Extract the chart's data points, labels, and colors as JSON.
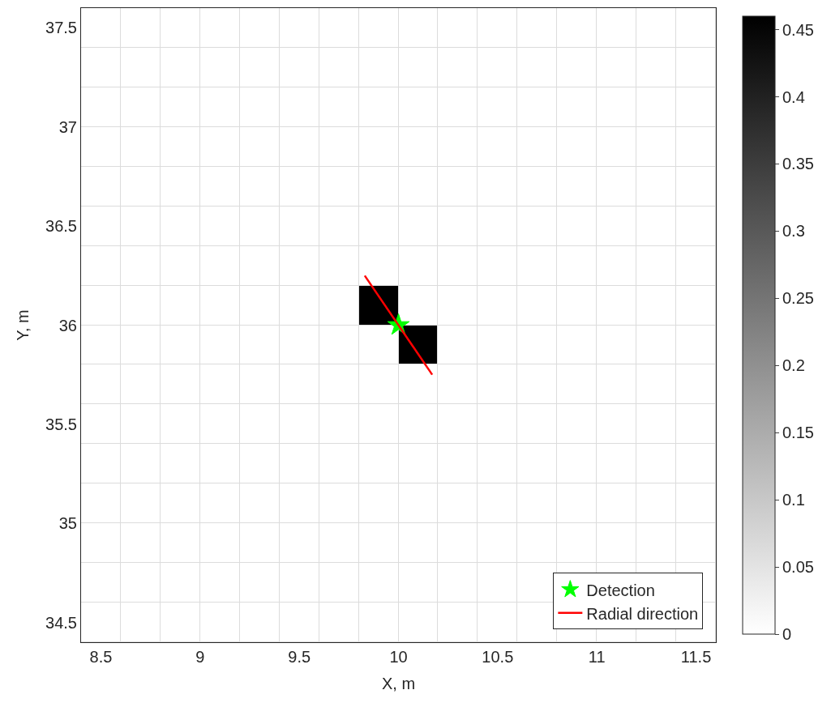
{
  "chart_data": {
    "type": "heatmap",
    "xlabel": "X, m",
    "ylabel": "Y, m",
    "x": [
      8.5,
      8.7,
      8.9,
      9.1,
      9.3,
      9.5,
      9.7,
      9.9,
      10.1,
      10.3,
      10.5,
      10.7,
      10.9,
      11.1,
      11.3,
      11.5
    ],
    "y": [
      37.5,
      37.3,
      37.1,
      36.9,
      36.7,
      36.5,
      36.3,
      36.1,
      35.9,
      35.7,
      35.5,
      35.3,
      35.1,
      34.9,
      34.7,
      34.5
    ],
    "cells": [
      [
        0,
        0,
        0,
        0,
        0,
        0,
        0,
        0,
        0,
        0,
        0,
        0,
        0,
        0,
        0,
        0
      ],
      [
        0,
        0,
        0,
        0,
        0,
        0,
        0,
        0,
        0,
        0,
        0,
        0,
        0,
        0,
        0,
        0
      ],
      [
        0,
        0,
        0,
        0,
        0,
        0,
        0,
        0,
        0,
        0,
        0,
        0,
        0,
        0,
        0,
        0
      ],
      [
        0,
        0,
        0,
        0,
        0,
        0,
        0,
        0,
        0,
        0,
        0,
        0,
        0,
        0,
        0,
        0
      ],
      [
        0,
        0,
        0,
        0,
        0,
        0,
        0,
        0,
        0,
        0,
        0,
        0,
        0,
        0,
        0,
        0
      ],
      [
        0,
        0,
        0,
        0,
        0,
        0,
        0,
        0,
        0,
        0,
        0,
        0,
        0,
        0,
        0,
        0
      ],
      [
        0,
        0,
        0,
        0,
        0,
        0,
        0,
        0,
        0,
        0,
        0,
        0,
        0,
        0,
        0,
        0
      ],
      [
        0,
        0,
        0,
        0,
        0,
        0,
        0,
        0.46,
        0,
        0,
        0,
        0,
        0,
        0,
        0,
        0
      ],
      [
        0,
        0,
        0,
        0,
        0,
        0,
        0,
        0,
        0.46,
        0,
        0,
        0,
        0,
        0,
        0,
        0
      ],
      [
        0,
        0,
        0,
        0,
        0,
        0,
        0,
        0,
        0,
        0,
        0,
        0,
        0,
        0,
        0,
        0
      ],
      [
        0,
        0,
        0,
        0,
        0,
        0,
        0,
        0,
        0,
        0,
        0,
        0,
        0,
        0,
        0,
        0
      ],
      [
        0,
        0,
        0,
        0,
        0,
        0,
        0,
        0,
        0,
        0,
        0,
        0,
        0,
        0,
        0,
        0
      ],
      [
        0,
        0,
        0,
        0,
        0,
        0,
        0,
        0,
        0,
        0,
        0,
        0,
        0,
        0,
        0,
        0
      ],
      [
        0,
        0,
        0,
        0,
        0,
        0,
        0,
        0,
        0,
        0,
        0,
        0,
        0,
        0,
        0,
        0
      ],
      [
        0,
        0,
        0,
        0,
        0,
        0,
        0,
        0,
        0,
        0,
        0,
        0,
        0,
        0,
        0,
        0
      ],
      [
        0,
        0,
        0,
        0,
        0,
        0,
        0,
        0,
        0,
        0,
        0,
        0,
        0,
        0,
        0,
        0
      ]
    ],
    "clim": [
      0,
      0.46
    ],
    "cticks": [
      0,
      0.05,
      0.1,
      0.15,
      0.2,
      0.25,
      0.3,
      0.35,
      0.4,
      0.45
    ],
    "xlim": [
      8.4,
      11.6
    ],
    "xticks": [
      8.5,
      9,
      9.5,
      10,
      10.5,
      11,
      11.5
    ],
    "ylim": [
      34.4,
      37.6
    ],
    "yticks": [
      34.5,
      35,
      35.5,
      36,
      36.5,
      37,
      37.5
    ],
    "series": [
      {
        "name": "Detection",
        "type": "scatter",
        "marker": "star",
        "color": "#00ff00",
        "x": [
          10
        ],
        "values": [
          36
        ]
      },
      {
        "name": "Radial direction",
        "type": "line",
        "marker": "none",
        "color": "#ff0000",
        "x": [
          9.83,
          10.17
        ],
        "values": [
          36.25,
          35.75
        ]
      }
    ],
    "legend": "bottom right"
  }
}
